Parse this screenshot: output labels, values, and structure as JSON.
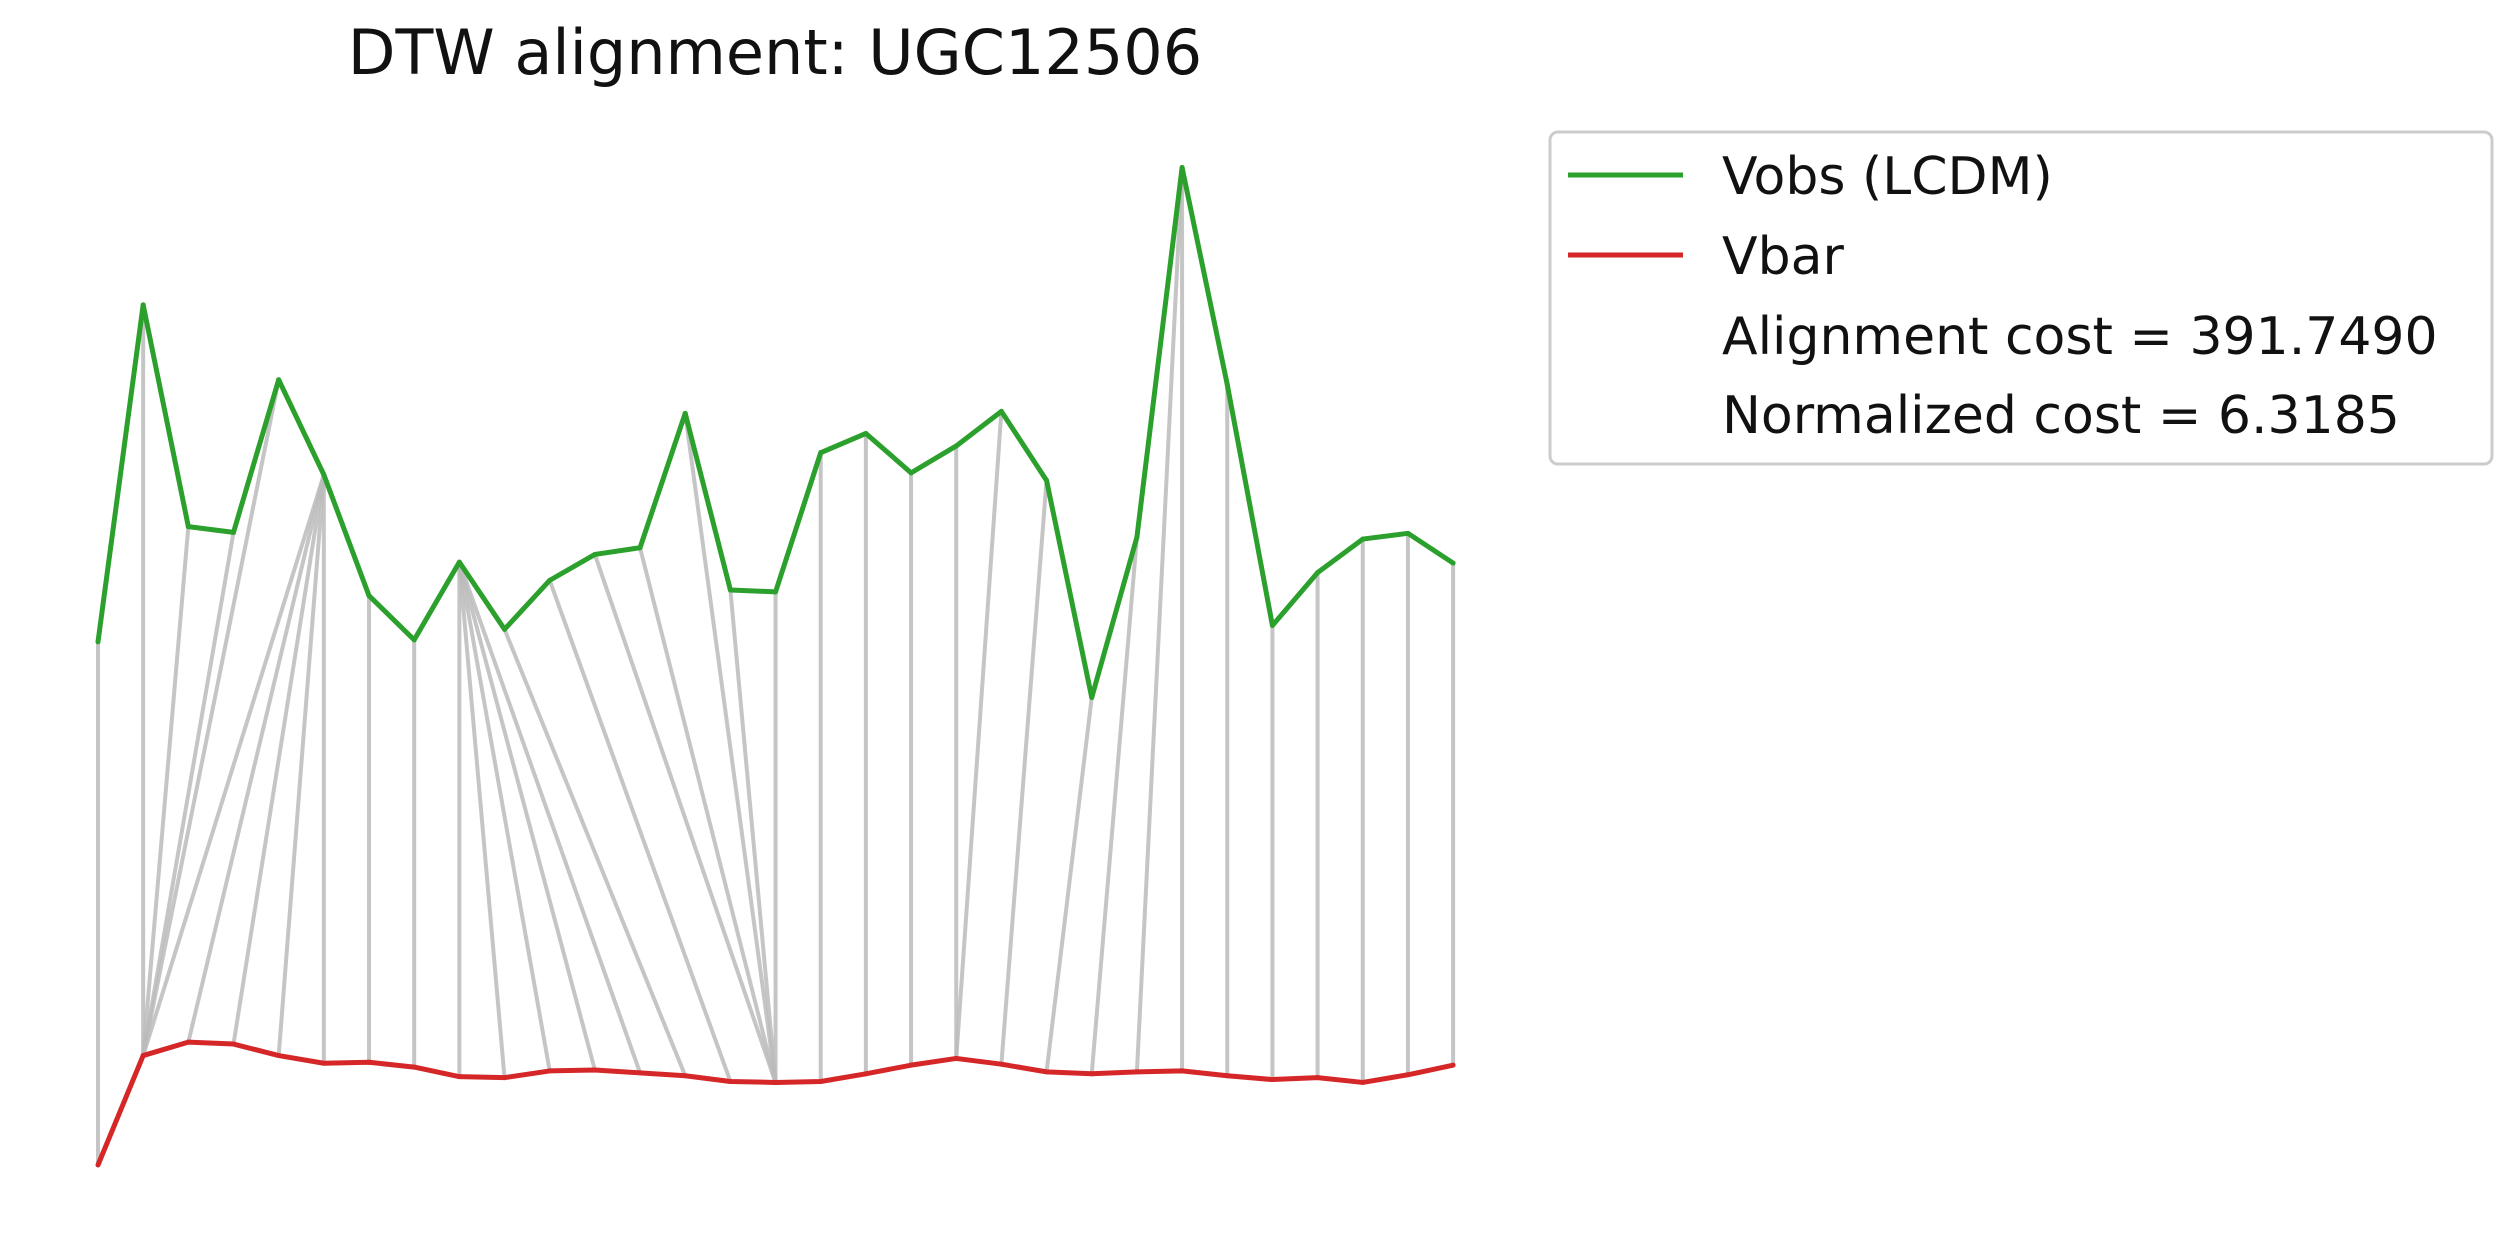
{
  "chart_data": {
    "type": "line",
    "title": "DTW alignment: UGC12506",
    "xlabel": "",
    "ylabel": "",
    "axes_visible": false,
    "grid": false,
    "legend_position": "outside-right",
    "x": [
      0,
      1,
      2,
      3,
      4,
      5,
      6,
      7,
      8,
      9,
      10,
      11,
      12,
      13,
      14,
      15,
      16,
      17,
      18,
      19,
      20,
      21,
      22,
      23,
      24,
      25,
      26,
      27,
      28,
      29,
      30
    ],
    "series": [
      {
        "name": "Vobs (LCDM)",
        "color": "#2ca02c",
        "values": [
          545,
          896,
          665,
          659,
          818,
          719,
          593,
          547,
          628,
          558,
          609,
          636,
          643,
          783,
          599,
          597,
          742,
          762,
          721,
          749,
          785,
          713,
          487,
          654,
          1039,
          813,
          562,
          617,
          652,
          658,
          627
        ]
      },
      {
        "name": "Vbar",
        "color": "#d62728",
        "values": [
          0,
          114,
          128,
          126,
          114,
          106,
          107,
          102,
          92,
          91,
          98,
          99,
          96,
          93,
          87,
          86,
          87,
          95,
          104,
          111,
          105,
          97,
          95,
          97,
          98,
          93,
          89,
          91,
          86,
          94,
          104
        ]
      }
    ],
    "alignment_pairs": [
      [
        0,
        0
      ],
      [
        1,
        1
      ],
      [
        2,
        1
      ],
      [
        3,
        1
      ],
      [
        4,
        1
      ],
      [
        5,
        1
      ],
      [
        5,
        2
      ],
      [
        5,
        3
      ],
      [
        5,
        4
      ],
      [
        5,
        5
      ],
      [
        6,
        6
      ],
      [
        7,
        7
      ],
      [
        8,
        8
      ],
      [
        8,
        9
      ],
      [
        8,
        10
      ],
      [
        8,
        11
      ],
      [
        8,
        12
      ],
      [
        9,
        13
      ],
      [
        10,
        14
      ],
      [
        11,
        15
      ],
      [
        12,
        15
      ],
      [
        13,
        15
      ],
      [
        14,
        15
      ],
      [
        15,
        15
      ],
      [
        16,
        16
      ],
      [
        17,
        17
      ],
      [
        18,
        18
      ],
      [
        19,
        19
      ],
      [
        20,
        19
      ],
      [
        21,
        20
      ],
      [
        22,
        21
      ],
      [
        23,
        22
      ],
      [
        24,
        23
      ],
      [
        24,
        24
      ],
      [
        25,
        25
      ],
      [
        26,
        26
      ],
      [
        27,
        27
      ],
      [
        28,
        28
      ],
      [
        29,
        29
      ],
      [
        30,
        30
      ]
    ],
    "alignment_color": "#bbbbbb",
    "legend_entries": [
      "Vobs (LCDM)",
      "Vbar",
      "Alignment cost = 391.7490",
      "Normalized cost = 6.3185"
    ]
  }
}
